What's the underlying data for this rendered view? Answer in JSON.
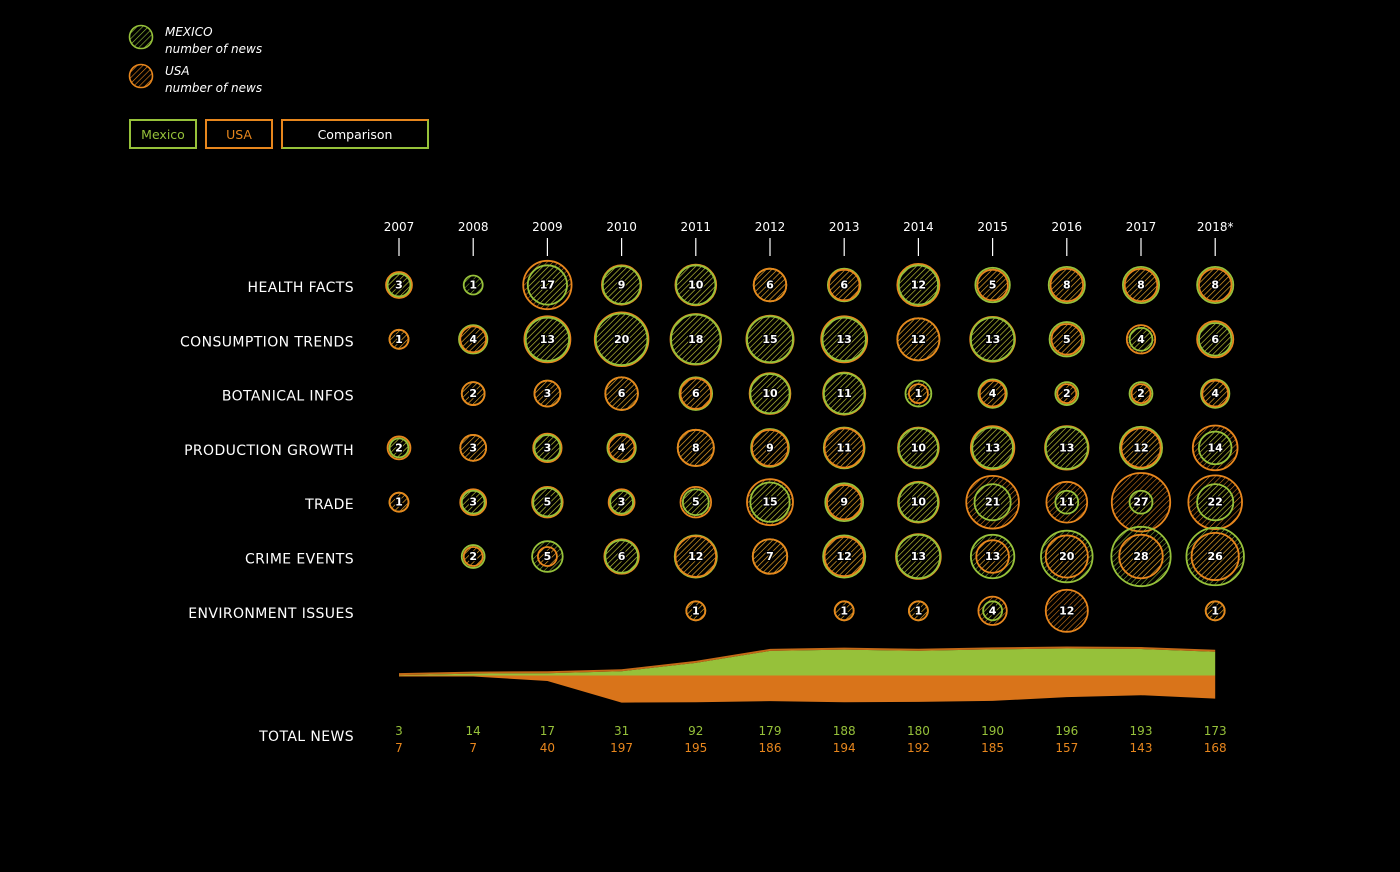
{
  "legend": {
    "mexico_line1": "MEXICO",
    "mexico_line2": "number of news",
    "usa_line1": "USA",
    "usa_line2": "number of news"
  },
  "buttons": {
    "mexico": "Mexico",
    "usa": "USA",
    "comparison": "Comparison"
  },
  "colors": {
    "mexico": "#96c13a",
    "usa": "#e7861d",
    "background": "#000000",
    "text": "#ffffff"
  },
  "chart_data": {
    "type": "bubble-matrix",
    "years": [
      "2007",
      "2008",
      "2009",
      "2010",
      "2011",
      "2012",
      "2013",
      "2014",
      "2015",
      "2016",
      "2017",
      "2018*"
    ],
    "categories": [
      "HEALTH FACTS",
      "CONSUMPTION TRENDS",
      "BOTANICAL INFOS",
      "PRODUCTION GROWTH",
      "TRADE",
      "CRIME EVENTS",
      "ENVIRONMENT ISSUES"
    ],
    "series": [
      {
        "name": "MEXICO",
        "color": "#96c13a",
        "values": [
          [
            2,
            1,
            10,
            9,
            10,
            6,
            6,
            10,
            7,
            8,
            8,
            8
          ],
          [
            1,
            4,
            13,
            20,
            18,
            15,
            13,
            12,
            13,
            7,
            2,
            6
          ],
          [
            0,
            2,
            3,
            6,
            6,
            10,
            11,
            3,
            4,
            2,
            2,
            4
          ],
          [
            1,
            3,
            3,
            4,
            8,
            9,
            11,
            10,
            11,
            12,
            12,
            6
          ],
          [
            1,
            2,
            4,
            2,
            3,
            10,
            9,
            10,
            8,
            2,
            2,
            8
          ],
          [
            0,
            2,
            5,
            6,
            12,
            7,
            12,
            13,
            13,
            20,
            28,
            26
          ],
          [
            0,
            0,
            0,
            0,
            1,
            0,
            1,
            1,
            1,
            0,
            0,
            1
          ]
        ]
      },
      {
        "name": "USA",
        "color": "#e7861d",
        "values": [
          [
            3,
            0,
            17,
            10,
            11,
            6,
            5,
            12,
            5,
            6,
            6,
            6
          ],
          [
            1,
            3,
            15,
            22,
            19,
            16,
            15,
            12,
            14,
            5,
            4,
            8
          ],
          [
            0,
            2,
            3,
            6,
            5,
            11,
            12,
            1,
            3,
            1,
            1,
            3
          ],
          [
            2,
            3,
            4,
            3,
            8,
            8,
            10,
            11,
            13,
            13,
            10,
            14
          ],
          [
            1,
            3,
            5,
            3,
            5,
            15,
            7,
            11,
            21,
            11,
            27,
            22
          ],
          [
            0,
            1,
            1,
            7,
            11,
            7,
            10,
            14,
            6,
            12,
            13,
            16
          ],
          [
            0,
            0,
            0,
            0,
            1,
            0,
            1,
            1,
            4,
            12,
            0,
            1
          ]
        ]
      }
    ],
    "labels": [
      [
        "3",
        "1",
        "17",
        "9",
        "10",
        "6",
        "6",
        "12",
        "5",
        "8",
        "8",
        "8"
      ],
      [
        "1",
        "4",
        "13",
        "20",
        "18",
        "15",
        "13",
        "12",
        "13",
        "5",
        "4",
        "6"
      ],
      [
        "",
        "2",
        "3",
        "6",
        "6",
        "10",
        "11",
        "1",
        "4",
        "2",
        "2",
        "4"
      ],
      [
        "2",
        "3",
        "3",
        "4",
        "8",
        "9",
        "11",
        "10",
        "13",
        "13",
        "12",
        "14"
      ],
      [
        "1",
        "3",
        "5",
        "3",
        "5",
        "15",
        "9",
        "10",
        "21",
        "11",
        "27",
        "22"
      ],
      [
        "",
        "2",
        "5",
        "6",
        "12",
        "7",
        "12",
        "13",
        "13",
        "20",
        "28",
        "26"
      ],
      [
        "",
        "",
        "",
        "",
        "1",
        "",
        "1",
        "1",
        "4",
        "12",
        "",
        "1"
      ]
    ],
    "totals_row_label": "TOTAL NEWS",
    "totals": {
      "MEXICO": [
        3,
        14,
        17,
        31,
        92,
        179,
        188,
        180,
        190,
        196,
        193,
        173
      ],
      "USA": [
        7,
        7,
        40,
        197,
        195,
        186,
        194,
        192,
        185,
        157,
        143,
        168
      ]
    },
    "stream": {
      "MEXICO": [
        3,
        14,
        17,
        31,
        92,
        179,
        188,
        180,
        190,
        196,
        193,
        173
      ],
      "USA": [
        7,
        7,
        40,
        197,
        195,
        186,
        194,
        192,
        185,
        157,
        143,
        168
      ]
    }
  }
}
